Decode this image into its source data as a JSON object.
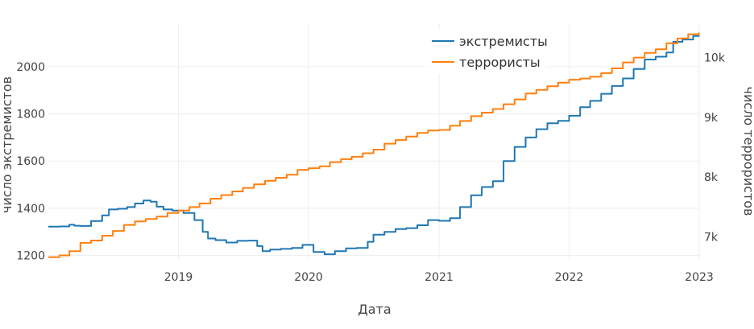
{
  "chart_data": {
    "type": "line",
    "xlabel": "Дата",
    "ylabel_left": "число экстремистов",
    "ylabel_right": "число террористов",
    "x_ticks": [
      "2019",
      "2020",
      "2021",
      "2022",
      "2023"
    ],
    "x_tick_dates": [
      "2019-01-01",
      "2020-01-01",
      "2021-01-01",
      "2022-01-01",
      "2023-01-01"
    ],
    "xlim": [
      "2018-01-01",
      "2023-01-01"
    ],
    "y_left": {
      "ticks": [
        "1200",
        "1400",
        "1600",
        "1800",
        "2000"
      ],
      "tick_values": [
        1200,
        1400,
        1600,
        1800,
        2000
      ],
      "range": [
        1185,
        2180
      ]
    },
    "y_right": {
      "ticks": [
        "7k",
        "8k",
        "9k",
        "10k"
      ],
      "tick_values": [
        7000,
        8000,
        9000,
        10000
      ],
      "range": [
        6630,
        10560
      ]
    },
    "grid": true,
    "legend_position": "top-right",
    "series": [
      {
        "name": "экстремисты",
        "axis": "left",
        "color": "#1f77b4",
        "points": [
          [
            "2018-01-01",
            1322
          ],
          [
            "2018-02-01",
            1323
          ],
          [
            "2018-03-01",
            1330
          ],
          [
            "2018-03-15",
            1326
          ],
          [
            "2018-04-01",
            1325
          ],
          [
            "2018-05-01",
            1346
          ],
          [
            "2018-06-01",
            1370
          ],
          [
            "2018-06-20",
            1395
          ],
          [
            "2018-07-15",
            1398
          ],
          [
            "2018-08-10",
            1405
          ],
          [
            "2018-09-01",
            1420
          ],
          [
            "2018-09-25",
            1433
          ],
          [
            "2018-10-15",
            1428
          ],
          [
            "2018-11-01",
            1407
          ],
          [
            "2018-11-20",
            1395
          ],
          [
            "2018-12-15",
            1390
          ],
          [
            "2019-01-15",
            1380
          ],
          [
            "2019-02-15",
            1350
          ],
          [
            "2019-03-10",
            1300
          ],
          [
            "2019-03-25",
            1272
          ],
          [
            "2019-04-15",
            1265
          ],
          [
            "2019-05-15",
            1255
          ],
          [
            "2019-06-15",
            1262
          ],
          [
            "2019-07-15",
            1263
          ],
          [
            "2019-08-10",
            1240
          ],
          [
            "2019-08-25",
            1218
          ],
          [
            "2019-09-15",
            1225
          ],
          [
            "2019-10-15",
            1228
          ],
          [
            "2019-11-15",
            1232
          ],
          [
            "2019-12-15",
            1245
          ],
          [
            "2020-01-15",
            1215
          ],
          [
            "2020-02-15",
            1205
          ],
          [
            "2020-03-15",
            1218
          ],
          [
            "2020-04-15",
            1230
          ],
          [
            "2020-05-15",
            1232
          ],
          [
            "2020-06-15",
            1258
          ],
          [
            "2020-07-01",
            1288
          ],
          [
            "2020-08-01",
            1300
          ],
          [
            "2020-09-01",
            1312
          ],
          [
            "2020-10-01",
            1316
          ],
          [
            "2020-11-01",
            1328
          ],
          [
            "2020-12-01",
            1350
          ],
          [
            "2021-01-01",
            1347
          ],
          [
            "2021-02-01",
            1358
          ],
          [
            "2021-03-01",
            1405
          ],
          [
            "2021-04-01",
            1455
          ],
          [
            "2021-05-01",
            1490
          ],
          [
            "2021-06-01",
            1515
          ],
          [
            "2021-07-01",
            1600
          ],
          [
            "2021-08-01",
            1660
          ],
          [
            "2021-09-01",
            1700
          ],
          [
            "2021-10-01",
            1735
          ],
          [
            "2021-11-01",
            1760
          ],
          [
            "2021-12-01",
            1770
          ],
          [
            "2022-01-01",
            1792
          ],
          [
            "2022-02-01",
            1828
          ],
          [
            "2022-03-01",
            1855
          ],
          [
            "2022-04-01",
            1885
          ],
          [
            "2022-05-01",
            1918
          ],
          [
            "2022-06-01",
            1950
          ],
          [
            "2022-07-01",
            1990
          ],
          [
            "2022-08-01",
            2030
          ],
          [
            "2022-09-01",
            2042
          ],
          [
            "2022-10-01",
            2060
          ],
          [
            "2022-10-20",
            2105
          ],
          [
            "2022-11-15",
            2115
          ],
          [
            "2022-12-15",
            2130
          ],
          [
            "2022-12-31",
            2133
          ]
        ]
      },
      {
        "name": "террористы",
        "axis": "right",
        "color": "#ff7f0e",
        "points": [
          [
            "2018-01-01",
            6660
          ],
          [
            "2018-02-01",
            6690
          ],
          [
            "2018-03-01",
            6760
          ],
          [
            "2018-04-01",
            6900
          ],
          [
            "2018-05-01",
            6940
          ],
          [
            "2018-06-01",
            7020
          ],
          [
            "2018-07-01",
            7100
          ],
          [
            "2018-08-01",
            7200
          ],
          [
            "2018-09-01",
            7260
          ],
          [
            "2018-10-01",
            7300
          ],
          [
            "2018-11-01",
            7340
          ],
          [
            "2018-12-01",
            7400
          ],
          [
            "2019-01-01",
            7440
          ],
          [
            "2019-02-01",
            7500
          ],
          [
            "2019-03-01",
            7560
          ],
          [
            "2019-04-01",
            7640
          ],
          [
            "2019-05-01",
            7700
          ],
          [
            "2019-06-01",
            7760
          ],
          [
            "2019-07-01",
            7820
          ],
          [
            "2019-08-01",
            7880
          ],
          [
            "2019-09-01",
            7940
          ],
          [
            "2019-10-01",
            7990
          ],
          [
            "2019-11-01",
            8040
          ],
          [
            "2019-12-01",
            8120
          ],
          [
            "2020-01-01",
            8150
          ],
          [
            "2020-02-01",
            8180
          ],
          [
            "2020-03-01",
            8250
          ],
          [
            "2020-04-01",
            8300
          ],
          [
            "2020-05-01",
            8340
          ],
          [
            "2020-06-01",
            8400
          ],
          [
            "2020-07-01",
            8460
          ],
          [
            "2020-08-01",
            8560
          ],
          [
            "2020-09-01",
            8620
          ],
          [
            "2020-10-01",
            8680
          ],
          [
            "2020-11-01",
            8740
          ],
          [
            "2020-12-01",
            8780
          ],
          [
            "2021-01-01",
            8790
          ],
          [
            "2021-02-01",
            8860
          ],
          [
            "2021-03-01",
            8940
          ],
          [
            "2021-04-01",
            9020
          ],
          [
            "2021-05-01",
            9080
          ],
          [
            "2021-06-01",
            9140
          ],
          [
            "2021-07-01",
            9220
          ],
          [
            "2021-08-01",
            9300
          ],
          [
            "2021-09-01",
            9400
          ],
          [
            "2021-10-01",
            9460
          ],
          [
            "2021-11-01",
            9520
          ],
          [
            "2021-12-01",
            9580
          ],
          [
            "2022-01-01",
            9630
          ],
          [
            "2022-02-01",
            9650
          ],
          [
            "2022-03-01",
            9680
          ],
          [
            "2022-04-01",
            9740
          ],
          [
            "2022-05-01",
            9820
          ],
          [
            "2022-06-01",
            9920
          ],
          [
            "2022-07-01",
            10000
          ],
          [
            "2022-08-01",
            10080
          ],
          [
            "2022-09-01",
            10140
          ],
          [
            "2022-10-01",
            10240
          ],
          [
            "2022-11-01",
            10320
          ],
          [
            "2022-12-01",
            10390
          ],
          [
            "2022-12-31",
            10420
          ]
        ]
      }
    ]
  }
}
